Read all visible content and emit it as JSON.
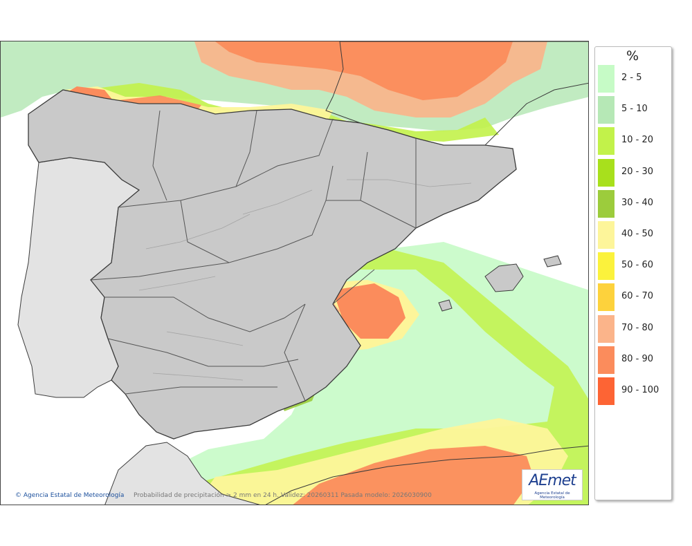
{
  "map": {
    "caption": "Probabilidad de precipitación > 2 mm en 24 h. Validez: 20260311 Pasada modelo: 2026030900",
    "credit_symbol": "©",
    "credit": "Agencia Estatal de Meteorología",
    "region": "Península Ibérica y Baleares"
  },
  "legend": {
    "title": "%",
    "items": [
      {
        "label": "2 - 5",
        "color": "#c6fbc6"
      },
      {
        "label": "5 - 10",
        "color": "#b6e8b6"
      },
      {
        "label": "10 - 20",
        "color": "#c2f24a"
      },
      {
        "label": "20 - 30",
        "color": "#a8e01c"
      },
      {
        "label": "30 - 40",
        "color": "#9ccc3c"
      },
      {
        "label": "40 - 50",
        "color": "#fdf59a"
      },
      {
        "label": "50 - 60",
        "color": "#fbf23c"
      },
      {
        "label": "60 - 70",
        "color": "#fdd23c"
      },
      {
        "label": "70 - 80",
        "color": "#fbb48a"
      },
      {
        "label": "80 - 90",
        "color": "#fb8c5c"
      },
      {
        "label": "90 - 100",
        "color": "#fd6434"
      }
    ]
  },
  "logo": {
    "word": "AEmet",
    "subtitle": "Agencia Estatal de Meteorología"
  },
  "colors": {
    "sea": "#ffffff",
    "land_spain": "#c9c9c9",
    "land_portugal": "#e3e3e3",
    "border": "#3a3a3a",
    "accent_blue": "#1d3f8f"
  }
}
